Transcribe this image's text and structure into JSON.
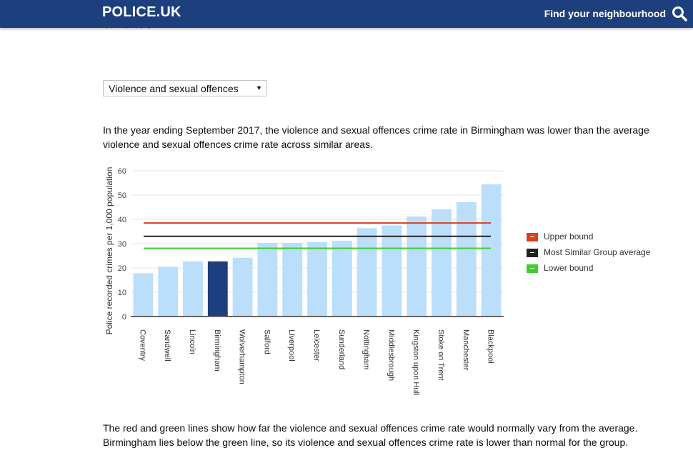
{
  "header": {
    "logo": "POLICE.UK",
    "find_link": "Find your neighbourhood",
    "search_icon": "search-icon",
    "background": "#1d3f7e"
  },
  "page": {
    "heading_partial": "areas",
    "crime_select": {
      "selected": "Violence and sexual offences"
    },
    "intro": "In the year ending September 2017, the violence and sexual offences crime rate in Birmingham was lower than the average violence and sexual offences crime rate across similar areas.",
    "explanation": "The red and green lines show how far the violence and sexual offences crime rate would normally vary from the average. Birmingham lies below the green line, so its violence and sexual offences crime rate is lower than normal for the group."
  },
  "chart_data": {
    "type": "bar",
    "title": "",
    "xlabel": "",
    "ylabel": "Police recorded crimes per 1,000 population",
    "ylim": [
      0,
      60
    ],
    "yticks": [
      0,
      10,
      20,
      30,
      40,
      50,
      60
    ],
    "grid": true,
    "legend_position": "right",
    "categories": [
      "Coventry",
      "Sandwell",
      "Lincoln",
      "Birmingham",
      "Wolverhampton",
      "Salford",
      "Liverpool",
      "Leicester",
      "Sunderland",
      "Nottingham",
      "Middlesbrough",
      "Kingston upon Hull",
      "Stoke on Trent",
      "Manchester",
      "Blackpool"
    ],
    "values": [
      17.8,
      20.5,
      22.7,
      22.7,
      24.2,
      30.3,
      30.3,
      30.7,
      31.2,
      36.4,
      37.5,
      41.2,
      44.1,
      47.1,
      54.4
    ],
    "highlight": "Birmingham",
    "bar_color": "#bbdefb",
    "highlight_color": "#1d3f7e",
    "reference_lines": [
      {
        "name": "Upper bound",
        "value": 38.5,
        "color": "#d9401b"
      },
      {
        "name": "Most Similar Group average",
        "value": 33.0,
        "color": "#222222"
      },
      {
        "name": "Lower bound",
        "value": 28.1,
        "color": "#3ccf2e"
      }
    ]
  }
}
